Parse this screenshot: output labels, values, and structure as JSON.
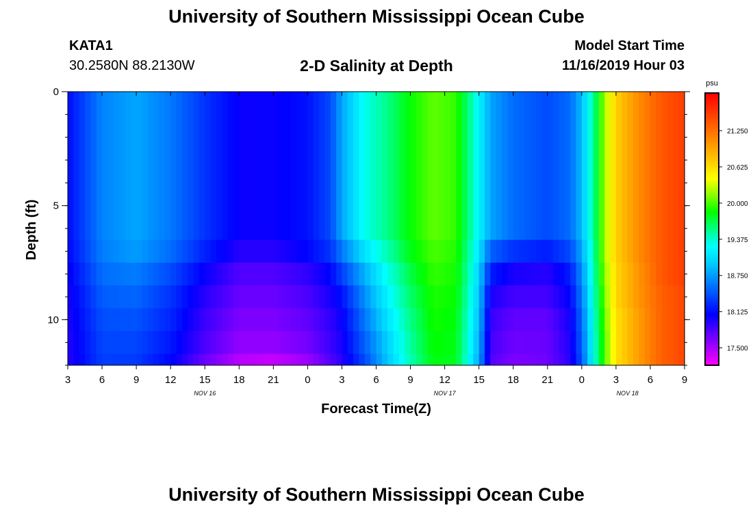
{
  "header": {
    "title": "University of Southern Mississippi Ocean Cube",
    "station_id": "KATA1",
    "station_coords": "30.2580N 88.2130W",
    "subtitle": "2-D Salinity at Depth",
    "model_start_label": "Model Start Time",
    "model_start_value": "11/16/2019 Hour 03"
  },
  "footer": {
    "title": "University of Southern Mississippi Ocean Cube"
  },
  "chart_data": {
    "type": "heatmap",
    "title": "2-D Salinity at Depth",
    "xlabel": "Forecast Time(Z)",
    "ylabel": "Depth (ft)",
    "x_hours": [
      0,
      3,
      6,
      9,
      12,
      15,
      18,
      21,
      24,
      27,
      30,
      33,
      36,
      39,
      42,
      45,
      48,
      51,
      54
    ],
    "x_tick_labels": [
      "3",
      "6",
      "9",
      "12",
      "15",
      "18",
      "21",
      "0",
      "3",
      "6",
      "9",
      "12",
      "15",
      "18",
      "21",
      "0",
      "3",
      "6",
      "9"
    ],
    "date_labels": [
      {
        "hour": 12,
        "text": "NOV 16"
      },
      {
        "hour": 33,
        "text": "NOV 17"
      },
      {
        "hour": 49,
        "text": "NOV 18"
      }
    ],
    "y_ticks": [
      0,
      5,
      10
    ],
    "y_tick_labels": [
      "0",
      "5",
      "10"
    ],
    "ylim": [
      0,
      12
    ],
    "depth_layers": [
      0,
      6.5,
      7.5,
      8.5,
      9.5,
      10.5,
      11.5,
      12
    ],
    "time_keypoints": [
      {
        "hour": 0,
        "salinity": [
          18.12,
          18.1,
          18.05,
          18.0,
          17.98,
          17.96,
          17.95
        ]
      },
      {
        "hour": 3,
        "salinity": [
          18.65,
          18.62,
          18.55,
          18.48,
          18.42,
          18.38,
          18.35
        ]
      },
      {
        "hour": 6,
        "salinity": [
          18.8,
          18.76,
          18.62,
          18.52,
          18.44,
          18.38,
          18.33
        ]
      },
      {
        "hour": 9,
        "salinity": [
          18.6,
          18.55,
          18.4,
          18.3,
          18.24,
          18.18,
          18.1
        ]
      },
      {
        "hour": 12,
        "salinity": [
          18.3,
          18.22,
          18.05,
          17.95,
          17.88,
          17.82,
          17.72
        ]
      },
      {
        "hour": 15,
        "salinity": [
          18.05,
          17.95,
          17.8,
          17.72,
          17.65,
          17.58,
          17.45
        ]
      },
      {
        "hour": 18,
        "salinity": [
          18.05,
          17.95,
          17.8,
          17.72,
          17.65,
          17.58,
          17.4
        ]
      },
      {
        "hour": 21,
        "salinity": [
          18.15,
          18.1,
          17.92,
          17.82,
          17.75,
          17.68,
          17.55
        ]
      },
      {
        "hour": 23,
        "salinity": [
          18.4,
          18.3,
          18.1,
          18.0,
          17.92,
          17.88,
          17.8
        ]
      },
      {
        "hour": 24,
        "salinity": [
          18.8,
          18.6,
          18.35,
          18.15,
          18.05,
          18.0,
          17.95
        ]
      },
      {
        "hour": 26,
        "salinity": [
          19.3,
          19.1,
          18.85,
          18.7,
          18.6,
          18.5,
          18.4
        ]
      },
      {
        "hour": 28,
        "salinity": [
          19.55,
          19.45,
          19.3,
          19.2,
          19.1,
          19.0,
          18.95
        ]
      },
      {
        "hour": 30,
        "salinity": [
          19.85,
          19.8,
          19.7,
          19.62,
          19.55,
          19.5,
          19.45
        ]
      },
      {
        "hour": 32,
        "salinity": [
          20.05,
          20.0,
          19.95,
          19.9,
          19.88,
          19.85,
          19.82
        ]
      },
      {
        "hour": 34,
        "salinity": [
          19.95,
          19.92,
          19.88,
          19.85,
          19.82,
          19.8,
          19.78
        ]
      },
      {
        "hour": 35,
        "salinity": [
          19.6,
          19.55,
          19.5,
          19.45,
          19.4,
          19.35,
          19.3
        ]
      },
      {
        "hour": 36,
        "salinity": [
          19.2,
          19.1,
          19.0,
          18.95,
          18.9,
          18.85,
          18.8
        ]
      },
      {
        "hour": 37,
        "salinity": [
          18.8,
          18.5,
          18.2,
          18.0,
          17.9,
          17.85,
          17.8
        ]
      },
      {
        "hour": 39,
        "salinity": [
          18.55,
          18.3,
          18.0,
          17.85,
          17.75,
          17.7,
          17.65
        ]
      },
      {
        "hour": 42,
        "salinity": [
          18.4,
          18.2,
          17.95,
          17.85,
          17.75,
          17.72,
          17.7
        ]
      },
      {
        "hour": 44,
        "salinity": [
          18.55,
          18.4,
          18.2,
          18.1,
          18.02,
          17.98,
          17.95
        ]
      },
      {
        "hour": 45,
        "salinity": [
          18.9,
          18.8,
          18.7,
          18.62,
          18.55,
          18.5,
          18.45
        ]
      },
      {
        "hour": 46,
        "salinity": [
          19.5,
          19.45,
          19.4,
          19.35,
          19.3,
          19.28,
          19.25
        ]
      },
      {
        "hour": 47,
        "salinity": [
          20.2,
          20.2,
          20.15,
          20.1,
          20.05,
          20.0,
          20.0
        ]
      },
      {
        "hour": 48,
        "salinity": [
          20.7,
          20.7,
          20.65,
          20.65,
          20.6,
          20.6,
          20.6
        ]
      },
      {
        "hour": 50,
        "salinity": [
          21.1,
          21.1,
          21.05,
          21.05,
          21.0,
          21.0,
          21.0
        ]
      },
      {
        "hour": 52,
        "salinity": [
          21.4,
          21.4,
          21.4,
          21.35,
          21.35,
          21.35,
          21.35
        ]
      },
      {
        "hour": 54,
        "salinity": [
          21.55,
          21.55,
          21.55,
          21.5,
          21.5,
          21.5,
          21.5
        ]
      }
    ],
    "colorbar": {
      "unit": "psu",
      "min": 17.2,
      "max": 21.9,
      "tick_values": [
        17.5,
        18.125,
        18.75,
        19.375,
        20.0,
        20.625,
        21.25
      ],
      "tick_labels": [
        "17.500",
        "18.125",
        "18.750",
        "19.375",
        "20.000",
        "20.625",
        "21.250"
      ],
      "colors": [
        "#ff00ff",
        "#aa00ff",
        "#5500ff",
        "#0000ff",
        "#0044ff",
        "#0088ff",
        "#00ccff",
        "#00ffff",
        "#00ff88",
        "#00ff00",
        "#88ff00",
        "#ffff00",
        "#ffcc00",
        "#ff9900",
        "#ff6600",
        "#ff3300",
        "#ff0000"
      ]
    }
  }
}
